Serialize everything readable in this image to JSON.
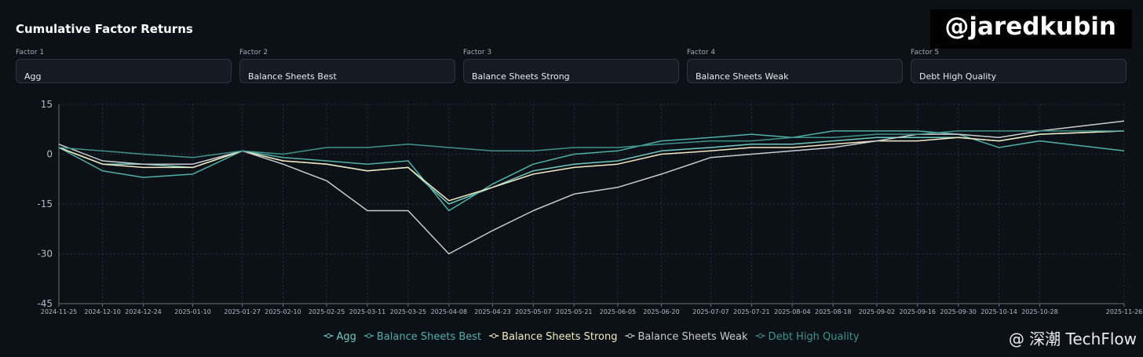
{
  "header": {
    "title": "Cumulative Factor Returns"
  },
  "controls": [
    {
      "label": "Factor 1",
      "value": "Agg"
    },
    {
      "label": "Factor 2",
      "value": "Balance Sheets Best"
    },
    {
      "label": "Factor 3",
      "value": "Balance Sheets Strong"
    },
    {
      "label": "Factor 4",
      "value": "Balance Sheets Weak"
    },
    {
      "label": "Factor 5",
      "value": "Debt High Quality"
    }
  ],
  "watermarks": {
    "handle": "@jaredkubin",
    "source": "@ 深潮 TechFlow"
  },
  "chart_data": {
    "type": "line",
    "x": [
      "2024-11-25",
      "2024-12-10",
      "2024-12-24",
      "2025-01-10",
      "2025-01-27",
      "2025-02-10",
      "2025-02-25",
      "2025-03-11",
      "2025-03-25",
      "2025-04-08",
      "2025-04-23",
      "2025-05-07",
      "2025-05-21",
      "2025-06-05",
      "2025-06-20",
      "2025-07-07",
      "2025-07-21",
      "2025-08-04",
      "2025-08-18",
      "2025-09-02",
      "2025-09-16",
      "2025-09-30",
      "2025-10-14",
      "2025-10-28",
      "2025-11-26"
    ],
    "xlim": [
      "2024-11-25",
      "2025-11-26"
    ],
    "xticks": [
      "2024-11-25",
      "2024-12-10",
      "2024-12-24",
      "2025-01-10",
      "2025-01-27",
      "2025-02-10",
      "2025-02-25",
      "2025-03-11",
      "2025-03-25",
      "2025-04-08",
      "2025-04-23",
      "2025-05-07",
      "2025-05-21",
      "2025-06-05",
      "2025-06-20",
      "2025-07-07",
      "2025-07-21",
      "2025-08-04",
      "2025-08-18",
      "2025-09-02",
      "2025-09-16",
      "2025-09-30",
      "2025-10-14",
      "2025-10-28",
      "2025-11-26"
    ],
    "ylim": [
      -45,
      15
    ],
    "yticks": [
      15,
      0,
      -15,
      -30,
      -45
    ],
    "grid": true,
    "series": [
      {
        "name": "Agg",
        "color": "#6fcabd",
        "values": [
          2,
          -3,
          -3,
          -4,
          1,
          -2,
          -3,
          -5,
          -4,
          -15,
          -10,
          -5,
          -3,
          -2,
          1,
          2,
          3,
          3,
          4,
          5,
          5,
          5,
          4,
          6,
          7
        ]
      },
      {
        "name": "Balance Sheets Best",
        "color": "#4fb0a6",
        "values": [
          2,
          -5,
          -7,
          -6,
          1,
          -1,
          -2,
          -3,
          -2,
          -17,
          -9,
          -3,
          0,
          1,
          4,
          5,
          6,
          5,
          7,
          7,
          7,
          6,
          2,
          4,
          1
        ]
      },
      {
        "name": "Balance Sheets Strong",
        "color": "#f3e9c0",
        "values": [
          2,
          -3,
          -4,
          -4,
          1,
          -2,
          -3,
          -5,
          -4,
          -14,
          -10,
          -6,
          -4,
          -3,
          0,
          1,
          2,
          2,
          3,
          4,
          4,
          5,
          4,
          6,
          7
        ]
      },
      {
        "name": "Balance Sheets Weak",
        "color": "#c9cbcf",
        "values": [
          3,
          -2,
          -3,
          -3,
          1,
          -3,
          -8,
          -17,
          -17,
          -30,
          -23,
          -17,
          -12,
          -10,
          -6,
          -1,
          0,
          1,
          2,
          4,
          6,
          6,
          5,
          7,
          10
        ]
      },
      {
        "name": "Debt High Quality",
        "color": "#3f9389",
        "values": [
          2,
          1,
          0,
          -1,
          1,
          0,
          2,
          2,
          3,
          2,
          1,
          1,
          2,
          2,
          3,
          4,
          4,
          5,
          5,
          6,
          6,
          7,
          7,
          7,
          7
        ]
      }
    ]
  }
}
